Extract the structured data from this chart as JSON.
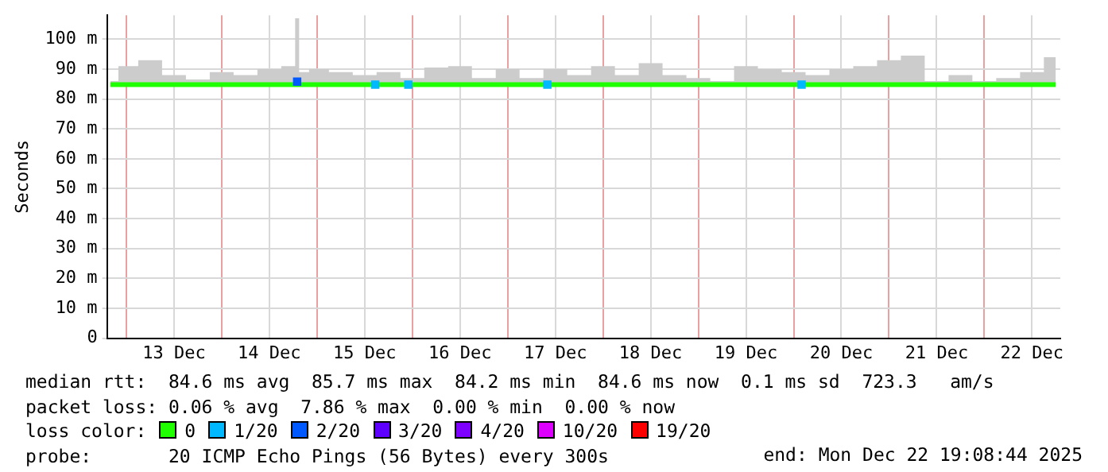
{
  "chart_data": {
    "type": "line",
    "ylabel": "Seconds",
    "legend_title": "loss color:",
    "legend": "bottom",
    "grid": true,
    "marker": "none",
    "xlim": [
      "2025-12-12T19:08",
      "2025-12-22T19:08"
    ],
    "xticks": [
      {
        "value": "2025-12-13",
        "label": null
      },
      {
        "value": "2025-12-13T12:00",
        "label": "13 Dec"
      },
      {
        "value": "2025-12-14",
        "label": null
      },
      {
        "value": "2025-12-14T12:00",
        "label": "14 Dec"
      },
      {
        "value": "2025-12-15",
        "label": null
      },
      {
        "value": "2025-12-15T12:00",
        "label": "15 Dec"
      },
      {
        "value": "2025-12-16",
        "label": null
      },
      {
        "value": "2025-12-16T12:00",
        "label": "16 Dec"
      },
      {
        "value": "2025-12-17",
        "label": null
      },
      {
        "value": "2025-12-17T12:00",
        "label": "17 Dec"
      },
      {
        "value": "2025-12-18",
        "label": null
      },
      {
        "value": "2025-12-18T12:00",
        "label": "18 Dec"
      },
      {
        "value": "2025-12-19",
        "label": null
      },
      {
        "value": "2025-12-19T12:00",
        "label": "19 Dec"
      },
      {
        "value": "2025-12-20",
        "label": null
      },
      {
        "value": "2025-12-20T12:00",
        "label": "20 Dec"
      },
      {
        "value": "2025-12-21",
        "label": null
      },
      {
        "value": "2025-12-21T12:00",
        "label": "21 Dec"
      },
      {
        "value": "2025-12-22",
        "label": null
      },
      {
        "value": "2025-12-22T12:00",
        "label": "22 Dec"
      }
    ],
    "ylim": [
      0,
      108
    ],
    "yticks": [
      0,
      {
        "value": 10,
        "label": "10 m"
      },
      {
        "value": 20,
        "label": "20 m"
      },
      {
        "value": 30,
        "label": "30 m"
      },
      {
        "value": 40,
        "label": "40 m"
      },
      {
        "value": 50,
        "label": "50 m"
      },
      {
        "value": 60,
        "label": "60 m"
      },
      {
        "value": 70,
        "label": "70 m"
      },
      {
        "value": 80,
        "label": "80 m"
      },
      {
        "value": 90,
        "label": "90 m"
      },
      {
        "value": 100,
        "label": "100 m"
      }
    ],
    "x": [
      "2025-12-12T20:00",
      "2025-12-13",
      "2025-12-13T06:00",
      "2025-12-13T12:00",
      "2025-12-13T18:00",
      "2025-12-14",
      "2025-12-14T06:00",
      "2025-12-14T12:00",
      "2025-12-14T18:00",
      "2025-12-14T19:00",
      "2025-12-14T20:00",
      "2025-12-15",
      "2025-12-15T06:00",
      "2025-12-15T12:00",
      "2025-12-15T18:00",
      "2025-12-16",
      "2025-12-16T06:00",
      "2025-12-16T12:00",
      "2025-12-16T18:00",
      "2025-12-17",
      "2025-12-17T06:00",
      "2025-12-17T12:00",
      "2025-12-17T18:00",
      "2025-12-18",
      "2025-12-18T06:00",
      "2025-12-18T12:00",
      "2025-12-18T18:00",
      "2025-12-19",
      "2025-12-19T06:00",
      "2025-12-19T12:00",
      "2025-12-19T18:00",
      "2025-12-20",
      "2025-12-20T06:00",
      "2025-12-20T12:00",
      "2025-12-20T18:00",
      "2025-12-21",
      "2025-12-21T06:00",
      "2025-12-21T12:00",
      "2025-12-21T18:00",
      "2025-12-22",
      "2025-12-22T06:00",
      "2025-12-22T12:00",
      "2025-12-22T18:00"
    ],
    "series": [
      {
        "name": "0",
        "color": "#20ff00",
        "values": [
          84.8,
          84.8,
          84.8,
          84.8,
          84.8,
          84.8,
          84.8,
          84.8,
          84.8,
          84.8,
          84.8,
          84.8,
          84.8,
          84.8,
          84.8,
          84.8,
          84.8,
          84.8,
          84.8,
          84.8,
          84.8,
          84.8,
          84.8,
          84.8,
          84.8,
          84.8,
          84.8,
          84.8,
          84.8,
          84.8,
          84.8,
          84.8,
          84.8,
          84.8,
          84.8,
          84.8,
          84.8,
          84.8,
          84.8,
          84.8,
          84.8,
          84.8,
          84.8
        ],
        "lower": [
          84.5,
          84.5,
          84.5,
          84.5,
          84.5,
          84.5,
          84.5,
          84.5,
          84.5,
          84.5,
          84.5,
          84.5,
          84.5,
          84.5,
          84.5,
          84.5,
          84.5,
          84.5,
          84.5,
          84.5,
          84.5,
          84.5,
          84.5,
          84.5,
          84.5,
          84.5,
          84.5,
          84.5,
          84.5,
          84.5,
          84.5,
          84.5,
          84.5,
          84.5,
          84.5,
          84.5,
          84.5,
          84.5,
          84.5,
          84.5,
          84.5,
          84.5,
          84.5
        ],
        "upper": [
          86,
          91,
          93,
          88,
          86.5,
          89,
          88,
          90,
          91,
          107,
          89,
          90,
          89,
          88,
          89,
          87,
          90.5,
          91,
          87,
          90,
          87,
          90,
          88,
          91,
          88,
          92,
          88,
          87,
          86,
          91,
          90,
          89,
          88,
          90,
          91,
          93,
          94.5,
          86,
          88,
          86,
          87,
          89,
          94
        ]
      },
      {
        "name": "1/20",
        "color": "#00b8ff",
        "type": "scatter",
        "marker": "square",
        "x": [
          "2025-12-15T14:40",
          "2025-12-15T23:00",
          "2025-12-17T10:00",
          "2025-12-20T02:00"
        ],
        "values": [
          84.8,
          84.8,
          84.8,
          84.8
        ]
      },
      {
        "name": "2/20",
        "color": "#0059ff",
        "type": "scatter",
        "marker": "square",
        "x": [
          "2025-12-14T19:00"
        ],
        "values": [
          85.8
        ]
      },
      {
        "name": "3/20",
        "color": "#5e00ff",
        "values": [
          null,
          null,
          null,
          null,
          null,
          null,
          null,
          null,
          null,
          null,
          null,
          null,
          null,
          null,
          null,
          null,
          null,
          null,
          null,
          null,
          null,
          null,
          null,
          null,
          null,
          null,
          null,
          null,
          null,
          null,
          null,
          null,
          null,
          null,
          null,
          null,
          null,
          null,
          null,
          null,
          null,
          null,
          null
        ]
      },
      {
        "name": "4/20",
        "color": "#7e00ff",
        "values": [
          null,
          null,
          null,
          null,
          null,
          null,
          null,
          null,
          null,
          null,
          null,
          null,
          null,
          null,
          null,
          null,
          null,
          null,
          null,
          null,
          null,
          null,
          null,
          null,
          null,
          null,
          null,
          null,
          null,
          null,
          null,
          null,
          null,
          null,
          null,
          null,
          null,
          null,
          null,
          null,
          null,
          null,
          null
        ]
      },
      {
        "name": "10/20",
        "color": "#dd00ff",
        "values": [
          null,
          null,
          null,
          null,
          null,
          null,
          null,
          null,
          null,
          null,
          null,
          null,
          null,
          null,
          null,
          null,
          null,
          null,
          null,
          null,
          null,
          null,
          null,
          null,
          null,
          null,
          null,
          null,
          null,
          null,
          null,
          null,
          null,
          null,
          null,
          null,
          null,
          null,
          null,
          null,
          null,
          null,
          null
        ]
      },
      {
        "name": "19/20",
        "color": "#ff0000",
        "values": [
          null,
          null,
          null,
          null,
          null,
          null,
          null,
          null,
          null,
          null,
          null,
          null,
          null,
          null,
          null,
          null,
          null,
          null,
          null,
          null,
          null,
          null,
          null,
          null,
          null,
          null,
          null,
          null,
          null,
          null,
          null,
          null,
          null,
          null,
          null,
          null,
          null,
          null,
          null,
          null,
          null,
          null,
          null
        ]
      }
    ],
    "annotations": [
      "median rtt:  84.6 ms avg  85.7 ms max  84.2 ms min  84.6 ms now  0.1 ms sd  723.3   am/s",
      "packet loss: 0.06 % avg  7.86 % max  0.00 % min  0.00 % now",
      "probe:       20 ICMP Echo Pings (56 Bytes) every 300s",
      "end: Mon Dec 22 19:08:44 2025"
    ]
  }
}
